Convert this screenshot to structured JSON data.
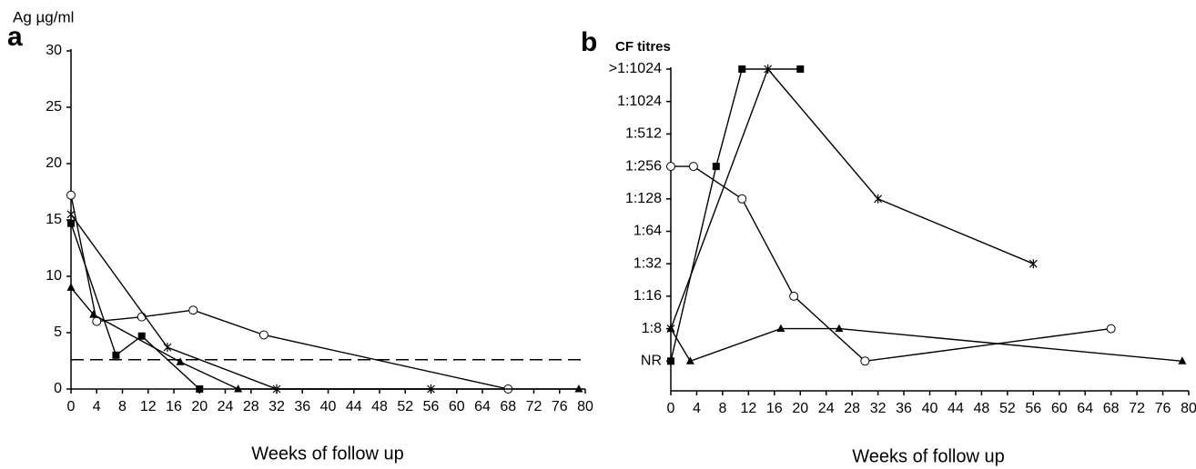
{
  "chart_data": [
    {
      "type": "line",
      "panel_label": "a",
      "ylabel": "Ag µg/ml",
      "xlabel": "Weeks of  follow up",
      "xlim": [
        0,
        80
      ],
      "xticks": [
        0,
        4,
        8,
        12,
        16,
        20,
        24,
        28,
        32,
        36,
        40,
        44,
        48,
        52,
        56,
        60,
        64,
        68,
        72,
        76,
        80
      ],
      "ylim": [
        0,
        30
      ],
      "yticks": [
        0,
        5,
        10,
        15,
        20,
        25,
        30
      ],
      "hline": 2.6,
      "series": [
        {
          "marker": "circle",
          "color": "#000000",
          "x": [
            0,
            4,
            11,
            19,
            30,
            68
          ],
          "values": [
            17.2,
            6.0,
            6.4,
            7.0,
            4.8,
            0
          ]
        },
        {
          "marker": "triangle",
          "color": "#000000",
          "x": [
            0,
            3.5,
            17,
            26,
            79
          ],
          "values": [
            9.0,
            6.6,
            2.4,
            0,
            0
          ]
        },
        {
          "marker": "square",
          "color": "#000000",
          "x": [
            0,
            7,
            11,
            20
          ],
          "values": [
            14.7,
            3.0,
            4.7,
            0
          ]
        },
        {
          "marker": "star",
          "color": "#000000",
          "x": [
            0,
            15,
            32,
            56
          ],
          "values": [
            15.5,
            3.7,
            0,
            0
          ]
        }
      ]
    },
    {
      "type": "line",
      "panel_label": "b",
      "ylabel": "CF titres",
      "xlabel": "Weeks of  follow up",
      "xlim": [
        0,
        80
      ],
      "xticks": [
        0,
        4,
        8,
        12,
        16,
        20,
        24,
        28,
        32,
        36,
        40,
        44,
        48,
        52,
        56,
        60,
        64,
        68,
        72,
        76,
        80
      ],
      "ylim": [
        -1,
        9
      ],
      "yticks": [
        {
          "value": 0,
          "label": "NR"
        },
        {
          "value": 1,
          "label": "1:8"
        },
        {
          "value": 2,
          "label": "1:16"
        },
        {
          "value": 3,
          "label": "1:32"
        },
        {
          "value": 4,
          "label": "1:64"
        },
        {
          "value": 5,
          "label": "1:128"
        },
        {
          "value": 6,
          "label": "1:256"
        },
        {
          "value": 7,
          "label": "1:512"
        },
        {
          "value": 8,
          "label": "1:1024"
        },
        {
          "value": 9,
          "label": ">1:1024"
        }
      ],
      "series": [
        {
          "marker": "square",
          "color": "#000000",
          "x": [
            0,
            7,
            11,
            20
          ],
          "values": [
            0,
            6,
            9,
            9
          ]
        },
        {
          "marker": "star",
          "color": "#000000",
          "x": [
            0,
            15,
            32,
            56
          ],
          "values": [
            1,
            9,
            5,
            3
          ]
        },
        {
          "marker": "circle",
          "color": "#000000",
          "x": [
            0,
            3.5,
            11,
            19,
            30,
            68
          ],
          "values": [
            6,
            6,
            5,
            2,
            0,
            1
          ]
        },
        {
          "marker": "triangle",
          "color": "#000000",
          "x": [
            0,
            3,
            17,
            26,
            79
          ],
          "values": [
            1,
            0,
            1,
            1,
            0
          ]
        }
      ]
    }
  ]
}
